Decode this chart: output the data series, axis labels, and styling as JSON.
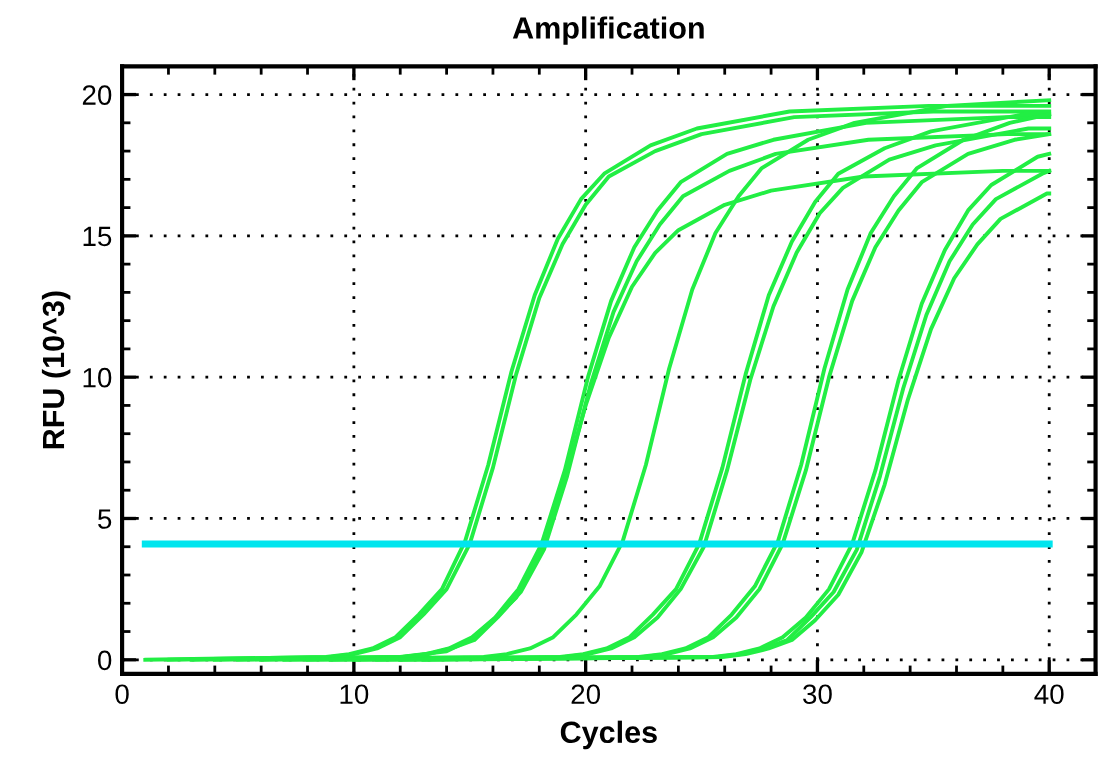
{
  "chart_data": {
    "type": "line",
    "title": "Amplification",
    "xlabel": "Cycles",
    "ylabel": "RFU (10^3)",
    "xlim": [
      0,
      42
    ],
    "ylim": [
      -0.5,
      21
    ],
    "xticks": [
      0,
      10,
      20,
      30,
      40
    ],
    "yticks": [
      0,
      5,
      10,
      15,
      20
    ],
    "grid": true,
    "marker": "none",
    "line_style": "solid",
    "series": [
      {
        "color": "#22ee44",
        "x": [
          1,
          8.8,
          9.8,
          10.8,
          11.8,
          12.8,
          13.8,
          14.8,
          15.8,
          16.8,
          17.8,
          18.8,
          19.8,
          20.8,
          22.8,
          24.8,
          28.8,
          34.8,
          40
        ],
        "values": [
          0,
          0.1,
          0.2,
          0.4,
          0.8,
          1.6,
          2.5,
          4.2,
          6.9,
          10.2,
          12.9,
          14.9,
          16.3,
          17.2,
          18.2,
          18.8,
          19.4,
          19.6,
          19.6
        ]
      },
      {
        "color": "#22ee44",
        "x": [
          2,
          9,
          10,
          11,
          12,
          13,
          14,
          15,
          16,
          17,
          18,
          19,
          20,
          21,
          23,
          25,
          29,
          35,
          40
        ],
        "values": [
          0,
          0.1,
          0.2,
          0.4,
          0.8,
          1.6,
          2.5,
          4.1,
          6.8,
          10.1,
          12.8,
          14.7,
          16.1,
          17.1,
          18.0,
          18.6,
          19.2,
          19.4,
          19.4
        ]
      },
      {
        "color": "#22ee44",
        "x": [
          3,
          12.1,
          13.1,
          14.1,
          15.1,
          16.1,
          17.1,
          18.1,
          19.1,
          20.1,
          21.1,
          22.1,
          23.1,
          24.1,
          26.1,
          28.1,
          32.1,
          38.1,
          40
        ],
        "values": [
          0,
          0.1,
          0.2,
          0.4,
          0.8,
          1.5,
          2.5,
          4.1,
          6.7,
          10.0,
          12.7,
          14.6,
          15.9,
          16.9,
          17.9,
          18.4,
          19.0,
          19.2,
          19.2
        ]
      },
      {
        "color": "#22ee44",
        "x": [
          4,
          12.2,
          13.2,
          14.2,
          15.2,
          16.2,
          17.2,
          18.2,
          19.2,
          20.2,
          21.2,
          22.2,
          23.2,
          24.2,
          26.2,
          28.2,
          32.2,
          38.2,
          40
        ],
        "values": [
          0,
          0.1,
          0.2,
          0.4,
          0.7,
          1.5,
          2.4,
          3.9,
          6.5,
          9.7,
          12.3,
          14.1,
          15.4,
          16.4,
          17.3,
          17.9,
          18.4,
          18.6,
          18.6
        ]
      },
      {
        "color": "#22ee44",
        "x": [
          5,
          12,
          13,
          14,
          15,
          16,
          17,
          18,
          19,
          20,
          21,
          22,
          23,
          24,
          26,
          28,
          32,
          38,
          40
        ],
        "values": [
          0,
          0.1,
          0.2,
          0.3,
          0.7,
          1.4,
          2.2,
          3.7,
          6.1,
          9.0,
          11.4,
          13.2,
          14.4,
          15.2,
          16.1,
          16.6,
          17.1,
          17.3,
          17.3
        ]
      },
      {
        "color": "#22ee44",
        "x": [
          6,
          15.6,
          16.6,
          17.6,
          18.6,
          19.6,
          20.6,
          21.6,
          22.6,
          23.6,
          24.6,
          25.6,
          26.6,
          27.6,
          29.6,
          31.6,
          35.6,
          40
        ],
        "values": [
          0,
          0.1,
          0.2,
          0.4,
          0.8,
          1.6,
          2.6,
          4.2,
          6.9,
          10.3,
          13.1,
          15.1,
          16.4,
          17.4,
          18.4,
          19.0,
          19.6,
          19.8
        ]
      },
      {
        "color": "#22ee44",
        "x": [
          7,
          18.9,
          19.9,
          20.9,
          21.9,
          22.9,
          23.9,
          24.9,
          25.9,
          26.9,
          27.9,
          28.9,
          29.9,
          30.9,
          32.9,
          34.9,
          38.9,
          40
        ],
        "values": [
          0,
          0.1,
          0.2,
          0.4,
          0.8,
          1.6,
          2.5,
          4.1,
          6.8,
          10.1,
          12.9,
          14.8,
          16.2,
          17.2,
          18.1,
          18.7,
          19.3,
          19.3
        ]
      },
      {
        "color": "#22ee44",
        "x": [
          8,
          19.1,
          20.1,
          21.1,
          22.1,
          23.1,
          24.1,
          25.1,
          26.1,
          27.1,
          28.1,
          29.1,
          30.1,
          31.1,
          33.1,
          35.1,
          39.1,
          40
        ],
        "values": [
          0,
          0.1,
          0.2,
          0.4,
          0.8,
          1.5,
          2.5,
          4.0,
          6.7,
          9.9,
          12.5,
          14.4,
          15.8,
          16.7,
          17.7,
          18.2,
          18.8,
          18.8
        ]
      },
      {
        "color": "#22ee44",
        "x": [
          9,
          22.3,
          23.3,
          24.3,
          25.3,
          26.3,
          27.3,
          28.3,
          29.3,
          30.3,
          31.3,
          32.3,
          33.3,
          34.3,
          36.3,
          38.3,
          40
        ],
        "values": [
          0,
          0.1,
          0.2,
          0.4,
          0.8,
          1.6,
          2.6,
          4.2,
          6.9,
          10.3,
          13.1,
          15.1,
          16.4,
          17.4,
          18.4,
          19.0,
          19.3
        ]
      },
      {
        "color": "#22ee44",
        "x": [
          10,
          22.5,
          23.5,
          24.5,
          25.5,
          26.5,
          27.5,
          28.5,
          29.5,
          30.5,
          31.5,
          32.5,
          33.5,
          34.5,
          36.5,
          38.5,
          40
        ],
        "values": [
          0,
          0.1,
          0.2,
          0.4,
          0.8,
          1.5,
          2.5,
          4.1,
          6.7,
          10.0,
          12.7,
          14.6,
          15.9,
          16.9,
          17.9,
          18.4,
          18.6
        ]
      },
      {
        "color": "#22ee44",
        "x": [
          11,
          25.5,
          26.5,
          27.5,
          28.5,
          29.5,
          30.5,
          31.5,
          32.5,
          33.5,
          34.5,
          35.5,
          36.5,
          37.5,
          39.5,
          40
        ],
        "values": [
          0,
          0.1,
          0.2,
          0.4,
          0.8,
          1.5,
          2.5,
          4.1,
          6.7,
          9.9,
          12.6,
          14.5,
          15.9,
          16.8,
          17.8,
          17.9
        ]
      },
      {
        "color": "#22ee44",
        "x": [
          12,
          25.7,
          26.7,
          27.7,
          28.7,
          29.7,
          30.7,
          31.7,
          32.7,
          33.7,
          34.7,
          35.7,
          36.7,
          37.7,
          39.7,
          40
        ],
        "values": [
          0,
          0.1,
          0.2,
          0.4,
          0.7,
          1.5,
          2.4,
          3.9,
          6.5,
          9.6,
          12.2,
          14.1,
          15.4,
          16.3,
          17.2,
          17.3
        ]
      },
      {
        "color": "#22ee44",
        "x": [
          13,
          25.9,
          26.9,
          27.9,
          28.9,
          29.9,
          30.9,
          31.9,
          32.9,
          33.9,
          34.9,
          35.9,
          36.9,
          37.9,
          39.9,
          40
        ],
        "values": [
          0,
          0.1,
          0.2,
          0.4,
          0.7,
          1.4,
          2.3,
          3.8,
          6.2,
          9.2,
          11.7,
          13.5,
          14.7,
          15.6,
          16.5,
          16.5
        ]
      },
      {
        "color": "#00e5ee",
        "x": [
          1,
          40
        ],
        "values": [
          4.1,
          4.1
        ]
      }
    ]
  }
}
